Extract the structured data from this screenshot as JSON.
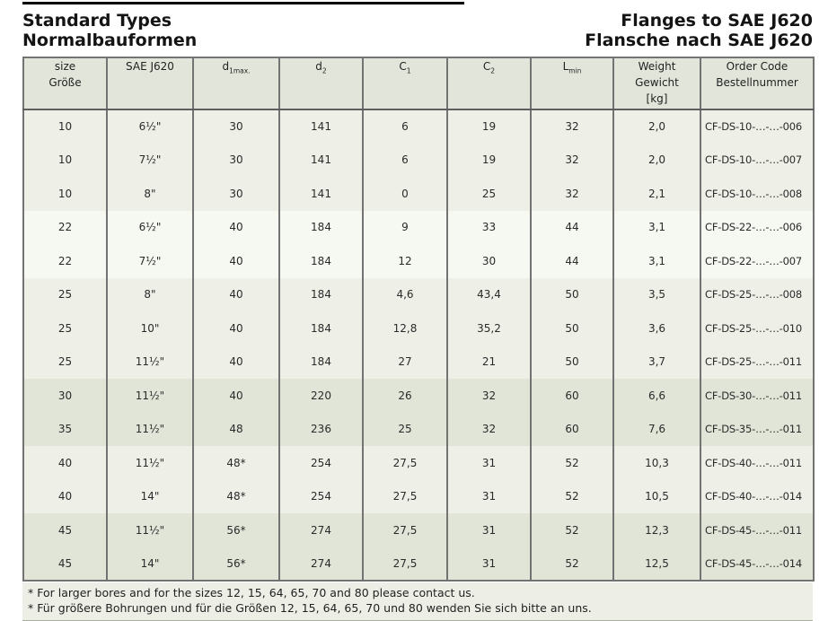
{
  "page": {
    "title_left_line1": "Standard Types",
    "title_left_line2": "Normalbauformen",
    "title_right_line1": "Flanges to SAE J620",
    "title_right_line2": "Flansche nach SAE J620"
  },
  "colors": {
    "band_a": "#eef0e8",
    "band_b": "#f6f8f2",
    "band_c": "#e1e5d8",
    "header_bg": "#e2e5da",
    "footer_bg": "#edefe7",
    "border": "#737373"
  },
  "table": {
    "columns": [
      {
        "line1": "size",
        "line2": "Größe"
      },
      {
        "line1": "SAE J620"
      },
      {
        "main": "d",
        "sub": "1max."
      },
      {
        "main": "d",
        "sub": "2"
      },
      {
        "main": "C",
        "sub": "1"
      },
      {
        "main": "C",
        "sub": "2"
      },
      {
        "main": "L",
        "sub": "min"
      },
      {
        "line1": "Weight",
        "line2": "Gewicht",
        "line3": "[kg]"
      },
      {
        "line1": "Order Code",
        "line2": "Bestellnummer"
      }
    ],
    "rows": [
      {
        "band": "a",
        "cells": [
          "10",
          "6½\"",
          "30",
          "141",
          "6",
          "19",
          "32",
          "2,0",
          "CF-DS-10-…-…-006"
        ]
      },
      {
        "band": "a",
        "cells": [
          "10",
          "7½\"",
          "30",
          "141",
          "6",
          "19",
          "32",
          "2,0",
          "CF-DS-10-…-…-007"
        ]
      },
      {
        "band": "a",
        "cells": [
          "10",
          "8\"",
          "30",
          "141",
          "0",
          "25",
          "32",
          "2,1",
          "CF-DS-10-…-…-008"
        ]
      },
      {
        "band": "b",
        "cells": [
          "22",
          "6½\"",
          "40",
          "184",
          "9",
          "33",
          "44",
          "3,1",
          "CF-DS-22-…-…-006"
        ]
      },
      {
        "band": "b",
        "cells": [
          "22",
          "7½\"",
          "40",
          "184",
          "12",
          "30",
          "44",
          "3,1",
          "CF-DS-22-…-…-007"
        ]
      },
      {
        "band": "a",
        "cells": [
          "25",
          "8\"",
          "40",
          "184",
          "4,6",
          "43,4",
          "50",
          "3,5",
          "CF-DS-25-…-…-008"
        ]
      },
      {
        "band": "a",
        "cells": [
          "25",
          "10\"",
          "40",
          "184",
          "12,8",
          "35,2",
          "50",
          "3,6",
          "CF-DS-25-…-…-010"
        ]
      },
      {
        "band": "a",
        "cells": [
          "25",
          "11½\"",
          "40",
          "184",
          "27",
          "21",
          "50",
          "3,7",
          "CF-DS-25-…-…-011"
        ]
      },
      {
        "band": "c",
        "cells": [
          "30",
          "11½\"",
          "40",
          "220",
          "26",
          "32",
          "60",
          "6,6",
          "CF-DS-30-…-…-011"
        ]
      },
      {
        "band": "c",
        "cells": [
          "35",
          "11½\"",
          "48",
          "236",
          "25",
          "32",
          "60",
          "7,6",
          "CF-DS-35-…-…-011"
        ]
      },
      {
        "band": "a",
        "cells": [
          "40",
          "11½\"",
          "48*",
          "254",
          "27,5",
          "31",
          "52",
          "10,3",
          "CF-DS-40-…-…-011"
        ]
      },
      {
        "band": "a",
        "cells": [
          "40",
          "14\"",
          "48*",
          "254",
          "27,5",
          "31",
          "52",
          "10,5",
          "CF-DS-40-…-…-014"
        ]
      },
      {
        "band": "c",
        "cells": [
          "45",
          "11½\"",
          "56*",
          "274",
          "27,5",
          "31",
          "52",
          "12,3",
          "CF-DS-45-…-…-011"
        ]
      },
      {
        "band": "c",
        "cells": [
          "45",
          "14\"",
          "56*",
          "274",
          "27,5",
          "31",
          "52",
          "12,5",
          "CF-DS-45-…-…-014"
        ]
      }
    ]
  },
  "footnotes": {
    "line1": "* For larger bores and for the sizes 12, 15, 64, 65, 70 and 80 please contact us.",
    "line2": "* Für größere Bohrungen und für die Größen 12, 15, 64, 65, 70 und 80 wenden Sie sich bitte an uns."
  }
}
